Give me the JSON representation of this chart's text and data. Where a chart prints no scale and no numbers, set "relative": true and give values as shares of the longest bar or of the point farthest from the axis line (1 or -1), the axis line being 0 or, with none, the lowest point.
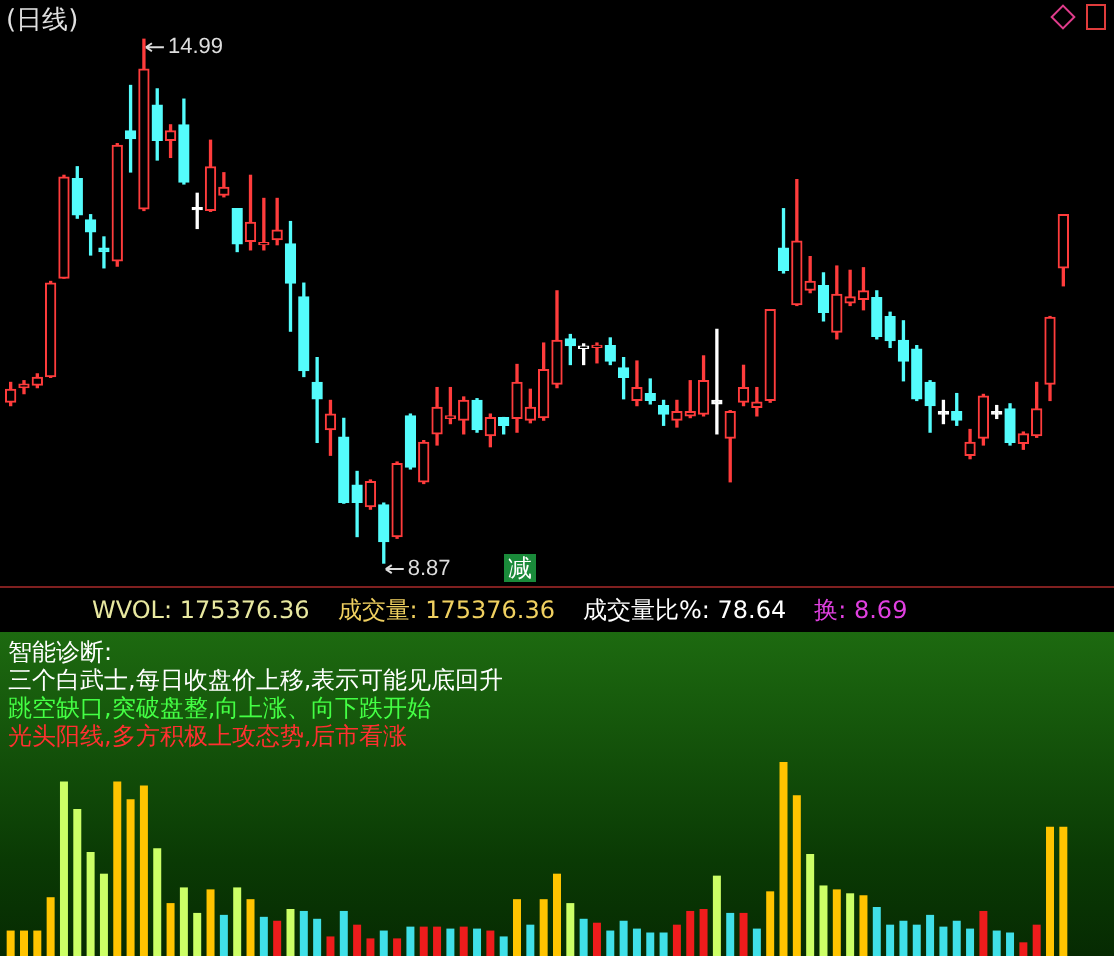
{
  "chart_data": [
    {
      "type": "candlestick",
      "title": "(日线)",
      "categories": [
        null,
        null,
        null,
        null,
        null,
        null,
        null,
        null,
        null,
        null,
        null,
        null,
        null,
        null,
        null,
        null,
        null,
        null,
        null,
        null,
        null,
        null,
        null,
        null,
        null,
        null,
        null,
        null,
        null,
        null,
        null,
        null,
        null,
        null,
        null,
        null,
        null,
        null,
        null,
        null,
        null,
        null,
        null,
        null,
        null,
        null,
        null,
        null,
        null,
        null,
        null,
        null,
        null,
        null,
        null,
        null,
        null,
        null,
        null,
        null,
        null,
        null,
        null,
        null,
        null,
        null,
        null,
        null,
        null,
        null,
        null,
        null,
        null,
        null,
        null,
        null,
        null,
        null,
        null,
        null
      ],
      "ohlc": [
        [
          10.75,
          10.98,
          10.71,
          10.9
        ],
        [
          10.92,
          11.0,
          10.85,
          10.96
        ],
        [
          10.95,
          11.08,
          10.92,
          11.04
        ],
        [
          11.05,
          12.16,
          11.04,
          12.14
        ],
        [
          12.2,
          13.4,
          12.2,
          13.38
        ],
        [
          13.36,
          13.5,
          12.9,
          12.94
        ],
        [
          12.88,
          12.94,
          12.47,
          12.74
        ],
        [
          12.55,
          12.68,
          12.32,
          12.51
        ],
        [
          12.4,
          13.77,
          12.34,
          13.75
        ],
        [
          13.92,
          14.45,
          13.44,
          13.83
        ],
        [
          13.01,
          14.99,
          12.99,
          14.64
        ],
        [
          14.22,
          14.41,
          13.58,
          13.81
        ],
        [
          13.81,
          13.99,
          13.61,
          13.92
        ],
        [
          13.99,
          14.29,
          13.3,
          13.32
        ],
        [
          13.01,
          13.19,
          12.78,
          13.0
        ],
        [
          12.99,
          13.81,
          12.98,
          13.5
        ],
        [
          13.17,
          13.43,
          13.15,
          13.26
        ],
        [
          13.01,
          13.01,
          12.51,
          12.6
        ],
        [
          12.63,
          13.4,
          12.53,
          12.85
        ],
        [
          12.59,
          13.13,
          12.53,
          12.6
        ],
        [
          12.65,
          13.13,
          12.59,
          12.76
        ],
        [
          12.6,
          12.86,
          11.58,
          12.14
        ],
        [
          11.98,
          12.14,
          11.05,
          11.12
        ],
        [
          10.98,
          11.27,
          10.28,
          10.79
        ],
        [
          10.43,
          10.77,
          10.13,
          10.61
        ],
        [
          10.34,
          10.56,
          9.57,
          9.58
        ],
        [
          9.78,
          9.94,
          9.18,
          9.58
        ],
        [
          9.53,
          9.84,
          9.5,
          9.82
        ],
        [
          9.55,
          9.57,
          8.87,
          9.12
        ],
        [
          9.18,
          10.05,
          9.16,
          10.03
        ],
        [
          10.59,
          10.61,
          9.97,
          9.99
        ],
        [
          9.82,
          10.3,
          9.8,
          10.28
        ],
        [
          10.38,
          10.92,
          10.25,
          10.69
        ],
        [
          10.56,
          10.92,
          10.5,
          10.59
        ],
        [
          10.54,
          10.81,
          10.38,
          10.77
        ],
        [
          10.77,
          10.79,
          10.4,
          10.43
        ],
        [
          10.36,
          10.61,
          10.23,
          10.57
        ],
        [
          10.57,
          10.57,
          10.38,
          10.48
        ],
        [
          10.56,
          11.19,
          10.4,
          10.98
        ],
        [
          10.54,
          10.9,
          10.51,
          10.69
        ],
        [
          10.57,
          11.44,
          10.54,
          11.13
        ],
        [
          10.96,
          12.05,
          10.92,
          11.47
        ],
        [
          11.49,
          11.54,
          11.19,
          11.41
        ],
        [
          11.38,
          11.43,
          11.19,
          11.4
        ],
        [
          11.39,
          11.44,
          11.21,
          11.41
        ],
        [
          11.41,
          11.5,
          11.19,
          11.23
        ],
        [
          11.15,
          11.27,
          10.79,
          11.04
        ],
        [
          10.77,
          11.23,
          10.71,
          10.92
        ],
        [
          10.85,
          11.02,
          10.73,
          10.77
        ],
        [
          10.71,
          10.77,
          10.48,
          10.61
        ],
        [
          10.54,
          10.77,
          10.46,
          10.64
        ],
        [
          10.59,
          11.0,
          10.57,
          10.64
        ],
        [
          10.61,
          11.29,
          10.59,
          11.0
        ],
        [
          10.77,
          11.6,
          10.38,
          10.73
        ],
        [
          10.33,
          10.65,
          9.82,
          10.64
        ],
        [
          10.75,
          11.18,
          10.71,
          10.92
        ],
        [
          10.69,
          10.92,
          10.59,
          10.75
        ],
        [
          10.77,
          11.83,
          10.75,
          11.83
        ],
        [
          12.55,
          13.01,
          12.26,
          12.29
        ],
        [
          11.89,
          13.35,
          11.88,
          12.63
        ],
        [
          12.06,
          12.45,
          12.03,
          12.16
        ],
        [
          12.11,
          12.26,
          11.7,
          11.8
        ],
        [
          11.57,
          12.34,
          11.49,
          12.01
        ],
        [
          11.91,
          12.29,
          11.88,
          11.98
        ],
        [
          11.95,
          12.32,
          11.83,
          12.05
        ],
        [
          11.97,
          12.05,
          11.49,
          11.52
        ],
        [
          11.75,
          11.8,
          11.39,
          11.47
        ],
        [
          11.47,
          11.7,
          11.0,
          11.23
        ],
        [
          11.37,
          11.41,
          10.77,
          10.79
        ],
        [
          10.98,
          11.0,
          10.4,
          10.71
        ],
        [
          10.64,
          10.77,
          10.5,
          10.61
        ],
        [
          10.64,
          10.85,
          10.48,
          10.54
        ],
        [
          10.13,
          10.43,
          10.09,
          10.28
        ],
        [
          10.33,
          10.84,
          10.25,
          10.82
        ],
        [
          10.64,
          10.71,
          10.56,
          10.61
        ],
        [
          10.67,
          10.73,
          10.25,
          10.28
        ],
        [
          10.27,
          10.4,
          10.2,
          10.38
        ],
        [
          10.36,
          10.98,
          10.34,
          10.67
        ],
        [
          10.96,
          11.75,
          10.77,
          11.74
        ],
        [
          12.32,
          12.94,
          12.11,
          12.94
        ]
      ],
      "colors": [
        "#ff3c3c",
        "#ff3c3c",
        "#ff3c3c",
        "#ff3c3c",
        "#ff3c3c",
        "#54fcfc",
        "#54fcfc",
        "#54fcfc",
        "#ff3c3c",
        "#54fcfc",
        "#ff3c3c",
        "#54fcfc",
        "#ff3c3c",
        "#54fcfc",
        "#ffffff",
        "#ff3c3c",
        "#ff3c3c",
        "#54fcfc",
        "#ff3c3c",
        "#ff3c3c",
        "#ff3c3c",
        "#54fcfc",
        "#54fcfc",
        "#54fcfc",
        "#ff3c3c",
        "#54fcfc",
        "#54fcfc",
        "#ff3c3c",
        "#54fcfc",
        "#ff3c3c",
        "#54fcfc",
        "#ff3c3c",
        "#ff3c3c",
        "#ff3c3c",
        "#ff3c3c",
        "#54fcfc",
        "#ff3c3c",
        "#54fcfc",
        "#ff3c3c",
        "#ff3c3c",
        "#ff3c3c",
        "#ff3c3c",
        "#54fcfc",
        "#ffffff",
        "#ff3c3c",
        "#54fcfc",
        "#54fcfc",
        "#ff3c3c",
        "#54fcfc",
        "#54fcfc",
        "#ff3c3c",
        "#ff3c3c",
        "#ff3c3c",
        "#ffffff",
        "#ff3c3c",
        "#ff3c3c",
        "#ff3c3c",
        "#ff3c3c",
        "#54fcfc",
        "#ff3c3c",
        "#ff3c3c",
        "#54fcfc",
        "#ff3c3c",
        "#ff3c3c",
        "#ff3c3c",
        "#54fcfc",
        "#54fcfc",
        "#54fcfc",
        "#54fcfc",
        "#54fcfc",
        "#ffffff",
        "#54fcfc",
        "#ff3c3c",
        "#ff3c3c",
        "#ffffff",
        "#54fcfc",
        "#ff3c3c",
        "#ff3c3c",
        "#ff3c3c",
        "#ff3c3c"
      ],
      "annotations": [
        "14.99",
        "8.87",
        "减"
      ]
    },
    {
      "type": "bar",
      "relative": true,
      "categories": [
        null,
        null,
        null,
        null,
        null,
        null,
        null,
        null,
        null,
        null,
        null,
        null,
        null,
        null,
        null,
        null,
        null,
        null,
        null,
        null,
        null,
        null,
        null,
        null,
        null,
        null,
        null,
        null,
        null,
        null,
        null,
        null,
        null,
        null,
        null,
        null,
        null,
        null,
        null,
        null,
        null,
        null,
        null,
        null,
        null,
        null,
        null,
        null,
        null,
        null,
        null,
        null,
        null,
        null,
        null,
        null,
        null,
        null,
        null,
        null,
        null,
        null,
        null,
        null,
        null,
        null,
        null,
        null,
        null,
        null,
        null,
        null,
        null,
        null,
        null,
        null,
        null,
        null,
        null,
        null
      ],
      "values": [
        0.14,
        0.14,
        0.14,
        0.31,
        0.9,
        0.76,
        0.54,
        0.43,
        0.9,
        0.81,
        0.88,
        0.56,
        0.28,
        0.36,
        0.23,
        0.35,
        0.22,
        0.36,
        0.3,
        0.21,
        0.19,
        0.25,
        0.24,
        0.2,
        0.11,
        0.24,
        0.17,
        0.1,
        0.14,
        0.1,
        0.16,
        0.16,
        0.16,
        0.15,
        0.16,
        0.15,
        0.14,
        0.11,
        0.3,
        0.17,
        0.3,
        0.43,
        0.28,
        0.2,
        0.18,
        0.14,
        0.19,
        0.15,
        0.13,
        0.13,
        0.17,
        0.24,
        0.25,
        0.42,
        0.23,
        0.23,
        0.15,
        0.34,
        1,
        0.83,
        0.53,
        0.37,
        0.35,
        0.33,
        0.32,
        0.26,
        0.17,
        0.19,
        0.17,
        0.22,
        0.16,
        0.19,
        0.15,
        0.24,
        0.14,
        0.13,
        0.08,
        0.17,
        0.67,
        0.67
      ],
      "colors": [
        "#ffc400",
        "#ffc400",
        "#ffc400",
        "#ffc400",
        "#ccff66",
        "#ccff66",
        "#ccff66",
        "#ccff66",
        "#ffc400",
        "#ffc400",
        "#ffc400",
        "#ccff66",
        "#ffc400",
        "#ccff66",
        "#ccff66",
        "#ffc400",
        "#40e0e8",
        "#ccff66",
        "#ffc400",
        "#40e0e8",
        "#ee1c1c",
        "#ccff66",
        "#40e0e8",
        "#40e0e8",
        "#ee1c1c",
        "#40e0e8",
        "#ee1c1c",
        "#ee1c1c",
        "#40e0e8",
        "#ee1c1c",
        "#40e0e8",
        "#ee1c1c",
        "#ee1c1c",
        "#40e0e8",
        "#ee1c1c",
        "#40e0e8",
        "#ee1c1c",
        "#40e0e8",
        "#ffc400",
        "#40e0e8",
        "#ffc400",
        "#ffc400",
        "#ccff66",
        "#40e0e8",
        "#ee1c1c",
        "#40e0e8",
        "#40e0e8",
        "#40e0e8",
        "#40e0e8",
        "#40e0e8",
        "#ee1c1c",
        "#ee1c1c",
        "#ee1c1c",
        "#ccff66",
        "#40e0e8",
        "#ee1c1c",
        "#40e0e8",
        "#ffc400",
        "#ffc400",
        "#ffc400",
        "#ccff66",
        "#ccff66",
        "#ffc400",
        "#ccff66",
        "#ffc400",
        "#40e0e8",
        "#40e0e8",
        "#40e0e8",
        "#40e0e8",
        "#40e0e8",
        "#40e0e8",
        "#40e0e8",
        "#40e0e8",
        "#ee1c1c",
        "#40e0e8",
        "#40e0e8",
        "#ee1c1c",
        "#ee1c1c",
        "#ffc400",
        "#ffc400"
      ],
      "annotations": [
        "WVOL: 175376.36",
        "成交量: 175376.36",
        "成交量比%: 78.64",
        "换: 8.69",
        "智能诊断:",
        "三个白武士,每日收盘价上移,表示可能见底回升",
        "跳空缺口,突破盘整,向上涨、向下跌开始",
        "光头阳线,多方积极上攻态势,后市看涨"
      ]
    }
  ]
}
